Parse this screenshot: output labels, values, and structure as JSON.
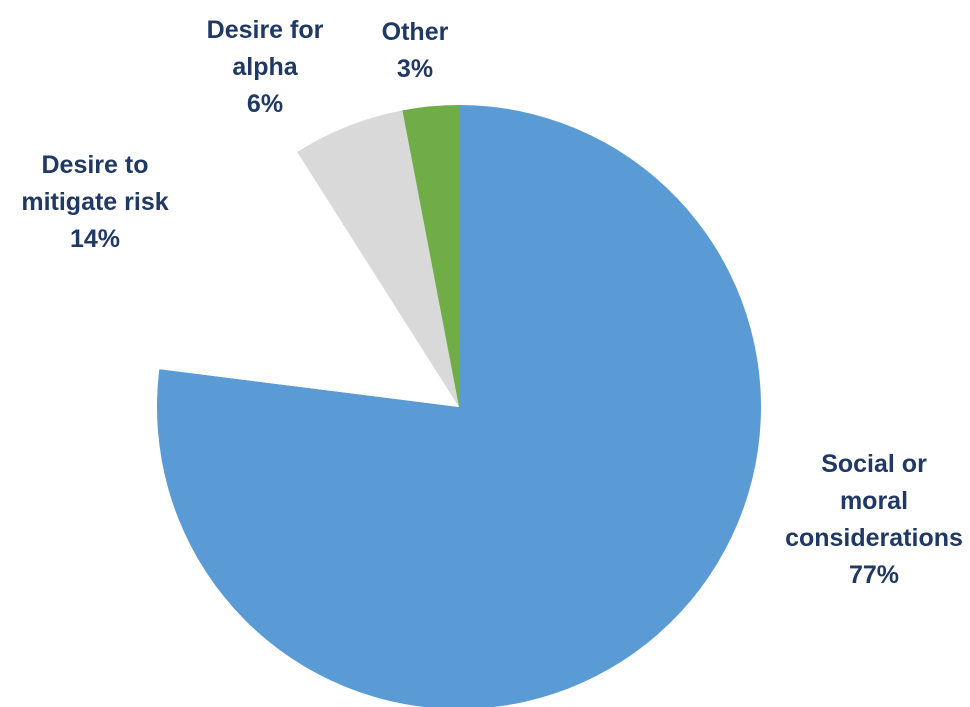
{
  "chart_data": {
    "type": "pie",
    "slices": [
      {
        "label": "Social or moral considerations",
        "label_lines": [
          "Social or",
          "moral",
          "considerations"
        ],
        "value": 77,
        "value_label": "77%",
        "color": "#5b9bd5"
      },
      {
        "label": "Desire to mitigate risk",
        "label_lines": [
          "Desire to",
          "mitigate risk"
        ],
        "value": 14,
        "value_label": "14%",
        "color": "#ffffff"
      },
      {
        "label": "Desire for alpha",
        "label_lines": [
          "Desire for",
          "alpha"
        ],
        "value": 6,
        "value_label": "6%",
        "color": "#d9d9d9"
      },
      {
        "label": "Other",
        "label_lines": [
          "Other"
        ],
        "value": 3,
        "value_label": "3%",
        "color": "#70ad47"
      }
    ],
    "start": "12 o'clock",
    "direction": "clockwise",
    "label_color": "#1f3864",
    "legend": "none"
  }
}
